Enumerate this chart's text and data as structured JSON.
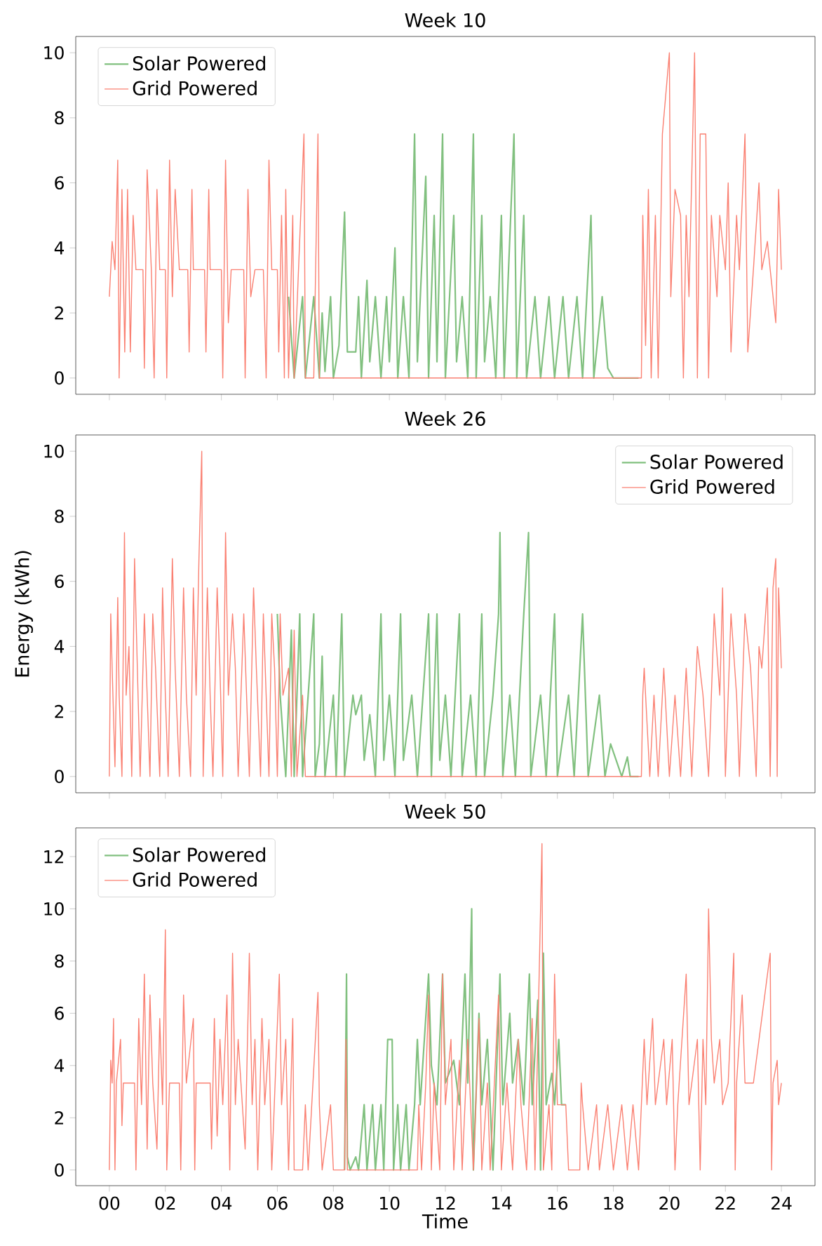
{
  "chart_data": [
    {
      "type": "line",
      "title": "Week 10",
      "xlim": [
        -1.2,
        25.2
      ],
      "ylim": [
        -0.5,
        10.5
      ],
      "yticks": [
        0,
        2,
        4,
        6,
        8,
        10
      ],
      "xticks": [
        {
          "value": 0,
          "label": null
        },
        {
          "value": 2,
          "label": null
        },
        {
          "value": 4,
          "label": null
        },
        {
          "value": 6,
          "label": null
        },
        {
          "value": 8,
          "label": null
        },
        {
          "value": 10,
          "label": null
        },
        {
          "value": 12,
          "label": null
        },
        {
          "value": 14,
          "label": null
        },
        {
          "value": 16,
          "label": null
        },
        {
          "value": 18,
          "label": null
        },
        {
          "value": 20,
          "label": null
        },
        {
          "value": 22,
          "label": null
        },
        {
          "value": 24,
          "label": null
        }
      ],
      "tick_labels": "y",
      "legend": "top left",
      "grid": false,
      "series": [
        {
          "name": "Solar Powered",
          "color": "#81c07f",
          "x": [
            6.4,
            6.6,
            6.9,
            7.0,
            7.3,
            7.5,
            7.6,
            7.7,
            7.9,
            8.0,
            8.2,
            8.4,
            8.5,
            8.8,
            8.9,
            9.0,
            9.2,
            9.3,
            9.5,
            9.7,
            9.9,
            10.0,
            10.2,
            10.3,
            10.5,
            10.7,
            10.9,
            11.0,
            11.3,
            11.4,
            11.6,
            11.7,
            11.9,
            12.0,
            12.3,
            12.4,
            12.6,
            12.8,
            13.0,
            13.1,
            13.3,
            13.4,
            13.6,
            13.8,
            14.0,
            14.1,
            14.45,
            14.55,
            14.8,
            14.9,
            15.2,
            15.4,
            15.7,
            15.9,
            16.2,
            16.4,
            16.7,
            16.9,
            17.2,
            17.3,
            17.6,
            17.8,
            18.0,
            18.9
          ],
          "values": [
            2.5,
            0,
            2.5,
            0,
            2.5,
            0,
            2,
            0.2,
            2.5,
            0,
            1,
            5.1,
            0.8,
            0.8,
            2.5,
            0,
            3,
            0.5,
            2.5,
            0,
            2.5,
            0.5,
            4,
            0,
            2.5,
            0,
            7.5,
            0.5,
            6.2,
            0,
            5,
            0.5,
            7.5,
            0,
            5,
            0.5,
            2.5,
            0,
            7.5,
            0,
            5,
            0.5,
            2.5,
            0,
            5,
            0,
            7.5,
            0,
            5,
            0,
            2.5,
            0,
            2.5,
            0,
            2.5,
            0,
            2.5,
            0,
            5,
            0,
            2.5,
            0.3,
            0,
            0
          ]
        },
        {
          "name": "Grid Powered",
          "color": "#fa8072",
          "x": [
            0,
            0.1,
            0.2,
            0.3,
            0.35,
            0.45,
            0.55,
            0.65,
            0.75,
            0.85,
            0.95,
            1.2,
            1.25,
            1.35,
            1.5,
            1.6,
            1.7,
            1.8,
            2.0,
            2.05,
            2.15,
            2.25,
            2.35,
            2.5,
            2.8,
            2.85,
            2.95,
            3.0,
            3.4,
            3.45,
            3.55,
            3.6,
            4.0,
            4.05,
            4.15,
            4.25,
            4.35,
            4.8,
            4.85,
            4.95,
            5.05,
            5.2,
            5.5,
            5.6,
            5.7,
            5.8,
            6.0,
            6.05,
            6.15,
            6.25,
            6.3,
            6.4,
            6.55,
            6.6,
            6.95,
            7.0,
            7.3,
            7.45,
            7.5,
            19.0,
            19.05,
            19.15,
            19.25,
            19.35,
            19.5,
            19.6,
            19.75,
            20.0,
            20.05,
            20.2,
            20.4,
            20.5,
            20.6,
            20.7,
            20.9,
            21.0,
            21.1,
            21.3,
            21.4,
            21.5,
            21.7,
            21.8,
            22.0,
            22.1,
            22.2,
            22.4,
            22.5,
            22.7,
            22.8,
            23.0,
            23.2,
            23.3,
            23.5,
            23.6,
            23.8,
            23.9,
            24.0
          ],
          "values": [
            2.5,
            4.2,
            3.33,
            6.7,
            0,
            5.8,
            0.8,
            5.8,
            0.8,
            5,
            3.33,
            3.33,
            0.3,
            6.4,
            3.33,
            0,
            5.8,
            3.33,
            3.33,
            0,
            6.7,
            2.5,
            5.8,
            3.33,
            3.33,
            0.8,
            5.8,
            3.33,
            3.33,
            0.8,
            5.8,
            3.33,
            3.33,
            0,
            6.7,
            1.7,
            3.33,
            3.33,
            0,
            5.8,
            2.5,
            3.33,
            3.33,
            0,
            6.7,
            3.33,
            3.33,
            0.8,
            5,
            0,
            5.8,
            0,
            5,
            0,
            7.5,
            0,
            0,
            7.5,
            0,
            0,
            5,
            1,
            5.8,
            0,
            5,
            0,
            7.5,
            10,
            2.5,
            5.8,
            5,
            0,
            5,
            2.5,
            10,
            0,
            7.5,
            7.5,
            0,
            5,
            2.5,
            5,
            3.33,
            6,
            0.8,
            5,
            3.33,
            7.5,
            0.8,
            3.33,
            6,
            3.33,
            4.2,
            3.33,
            1.7,
            5.8,
            3.33
          ]
        }
      ]
    },
    {
      "type": "line",
      "title": "Week 26",
      "ylabel": "Energy (kWh)",
      "xlim": [
        -1.2,
        25.2
      ],
      "ylim": [
        -0.5,
        10.5
      ],
      "yticks": [
        0,
        2,
        4,
        6,
        8,
        10
      ],
      "xticks": [
        {
          "value": 0,
          "label": null
        },
        {
          "value": 2,
          "label": null
        },
        {
          "value": 4,
          "label": null
        },
        {
          "value": 6,
          "label": null
        },
        {
          "value": 8,
          "label": null
        },
        {
          "value": 10,
          "label": null
        },
        {
          "value": 12,
          "label": null
        },
        {
          "value": 14,
          "label": null
        },
        {
          "value": 16,
          "label": null
        },
        {
          "value": 18,
          "label": null
        },
        {
          "value": 20,
          "label": null
        },
        {
          "value": 22,
          "label": null
        },
        {
          "value": 24,
          "label": null
        }
      ],
      "tick_labels": "y",
      "legend": "top right",
      "grid": false,
      "series": [
        {
          "name": "Solar Powered",
          "color": "#81c07f",
          "x": [
            6.0,
            6.1,
            6.3,
            6.5,
            6.6,
            6.8,
            6.9,
            7.3,
            7.35,
            7.5,
            7.6,
            7.7,
            8.0,
            8.1,
            8.3,
            8.4,
            8.7,
            8.8,
            9.0,
            9.1,
            9.3,
            9.5,
            9.7,
            9.8,
            10.0,
            10.2,
            10.4,
            10.5,
            10.8,
            11.0,
            11.4,
            11.5,
            11.7,
            11.8,
            12.0,
            12.2,
            12.5,
            12.6,
            12.9,
            13.1,
            13.3,
            13.4,
            13.7,
            13.9,
            13.95,
            14.05,
            14.3,
            14.5,
            14.8,
            14.97,
            15.05,
            15.4,
            15.6,
            15.9,
            16.0,
            16.4,
            16.6,
            16.9,
            17.1,
            17.5,
            17.7,
            17.9,
            18.1,
            18.3,
            18.5,
            18.6,
            18.9
          ],
          "values": [
            5,
            2.5,
            0,
            4.5,
            0,
            5,
            0,
            5,
            0,
            1,
            3.7,
            0,
            2.5,
            0,
            5,
            0,
            2.5,
            1.9,
            2.5,
            0.5,
            1.9,
            0,
            5,
            0.5,
            2.5,
            0,
            5,
            0.5,
            2.5,
            0,
            5,
            0,
            5,
            0.5,
            2.5,
            0,
            5,
            0,
            2.5,
            0,
            5,
            0,
            2.5,
            5,
            7.5,
            0,
            2.5,
            0,
            5,
            7.5,
            0,
            2.5,
            0,
            5,
            0,
            2.5,
            0,
            5,
            0,
            2.5,
            0,
            1,
            0.5,
            0,
            0.6,
            0,
            0
          ]
        },
        {
          "name": "Grid Powered",
          "color": "#fa8072",
          "x": [
            0,
            0.05,
            0.1,
            0.2,
            0.3,
            0.35,
            0.45,
            0.54,
            0.6,
            0.7,
            0.8,
            0.9,
            1.0,
            1.1,
            1.25,
            1.35,
            1.45,
            1.55,
            1.65,
            1.8,
            1.9,
            2.0,
            2.1,
            2.25,
            2.35,
            2.5,
            2.65,
            2.75,
            2.9,
            3.0,
            3.1,
            3.2,
            3.3,
            3.35,
            3.5,
            3.6,
            3.7,
            3.85,
            3.95,
            4.05,
            4.15,
            4.25,
            4.4,
            4.5,
            4.6,
            4.8,
            4.9,
            5.0,
            5.15,
            5.25,
            5.4,
            5.5,
            5.6,
            5.7,
            5.8,
            5.9,
            6.0,
            6.1,
            6.2,
            6.4,
            6.5,
            6.6,
            6.7,
            6.9,
            7.0,
            19.0,
            19.05,
            19.1,
            19.3,
            19.45,
            19.6,
            19.8,
            20.0,
            20.2,
            20.4,
            20.6,
            20.8,
            21.0,
            21.2,
            21.4,
            21.6,
            21.8,
            21.9,
            22.0,
            22.2,
            22.4,
            22.5,
            22.7,
            22.9,
            23.1,
            23.2,
            23.3,
            23.5,
            23.6,
            23.7,
            23.8,
            23.85,
            23.9,
            24.0
          ],
          "values": [
            0,
            5,
            3.33,
            0.3,
            5.5,
            2.5,
            0,
            7.5,
            2.5,
            4,
            0,
            6.7,
            3.33,
            0,
            5,
            2.5,
            0,
            5,
            3.33,
            0,
            5.8,
            2.5,
            0,
            6.7,
            3.33,
            0,
            5.8,
            2.5,
            0,
            5.8,
            2.5,
            6.7,
            10,
            0,
            5.8,
            2.5,
            0,
            5.8,
            3.33,
            0,
            7.5,
            2.5,
            5,
            3.33,
            0,
            5,
            2.5,
            0,
            5.8,
            3.33,
            0,
            5,
            2.5,
            0,
            5,
            3.33,
            0,
            5,
            2.5,
            3.33,
            0,
            4.5,
            0,
            2.5,
            0,
            0,
            2.5,
            3.33,
            0,
            2.5,
            0,
            3.33,
            0,
            2.5,
            0,
            3.33,
            0,
            4,
            2.5,
            0,
            5,
            2.5,
            5.8,
            0,
            5,
            2.5,
            0,
            5,
            3.33,
            0,
            4,
            3.33,
            5.8,
            0,
            5.8,
            6.7,
            0,
            5.8,
            3.33
          ]
        }
      ]
    },
    {
      "type": "line",
      "title": "Week 50",
      "xlabel": "Time",
      "xlim": [
        -1.2,
        25.2
      ],
      "ylim": [
        -0.6,
        13.1
      ],
      "yticks": [
        0,
        2,
        4,
        6,
        8,
        10,
        12
      ],
      "xticks": [
        {
          "value": 0,
          "label": "00"
        },
        {
          "value": 2,
          "label": "02"
        },
        {
          "value": 4,
          "label": "04"
        },
        {
          "value": 6,
          "label": "06"
        },
        {
          "value": 8,
          "label": "08"
        },
        {
          "value": 10,
          "label": "10"
        },
        {
          "value": 12,
          "label": "12"
        },
        {
          "value": 14,
          "label": "14"
        },
        {
          "value": 16,
          "label": "16"
        },
        {
          "value": 18,
          "label": "18"
        },
        {
          "value": 20,
          "label": "20"
        },
        {
          "value": 22,
          "label": "22"
        },
        {
          "value": 24,
          "label": "24"
        }
      ],
      "legend": "top left",
      "grid": false,
      "series": [
        {
          "name": "Solar Powered",
          "color": "#81c07f",
          "x": [
            8.4,
            8.47,
            8.5,
            8.6,
            8.8,
            8.9,
            9.1,
            9.2,
            9.4,
            9.5,
            9.7,
            9.8,
            9.94,
            10.1,
            10.15,
            10.3,
            10.4,
            10.6,
            10.7,
            10.9,
            11.0,
            11.1,
            11.4,
            11.5,
            11.7,
            11.9,
            12.0,
            12.3,
            12.5,
            12.7,
            12.8,
            12.94,
            13.0,
            13.2,
            13.3,
            13.5,
            13.7,
            13.95,
            14.05,
            14.3,
            14.4,
            14.6,
            14.8,
            15.0,
            15.1,
            15.3,
            15.4,
            15.5,
            15.6,
            15.8,
            15.9,
            16.05,
            16.15,
            16.3
          ],
          "values": [
            0,
            7.5,
            0.5,
            0,
            0.5,
            0,
            2.5,
            0,
            2.5,
            0,
            2.5,
            0,
            5,
            5,
            0,
            2.5,
            0,
            2.5,
            0,
            2.5,
            5,
            2.5,
            7.5,
            4,
            2.5,
            7.5,
            3.33,
            4.2,
            2.5,
            7.5,
            3.33,
            10,
            0,
            6,
            2.5,
            5,
            0,
            7.5,
            2.5,
            6,
            3.33,
            5,
            2.5,
            7.5,
            2.5,
            6.5,
            0,
            8.3,
            2.5,
            3.7,
            2.5,
            5,
            2.5,
            2.5
          ]
        },
        {
          "name": "Grid Powered",
          "color": "#fa8072",
          "x": [
            0,
            0.05,
            0.1,
            0.15,
            0.2,
            0.25,
            0.4,
            0.45,
            0.5,
            0.9,
            0.95,
            1.05,
            1.15,
            1.25,
            1.35,
            1.45,
            1.55,
            1.7,
            1.8,
            1.9,
            2.0,
            2.05,
            2.15,
            2.5,
            2.55,
            2.65,
            2.75,
            3.0,
            3.05,
            3.1,
            3.6,
            3.65,
            3.75,
            3.85,
            3.95,
            4.05,
            4.2,
            4.3,
            4.4,
            4.5,
            4.6,
            4.7,
            4.85,
            5.0,
            5.1,
            5.2,
            5.3,
            5.45,
            5.55,
            5.7,
            5.8,
            6.07,
            6.15,
            6.3,
            6.4,
            6.55,
            6.6,
            6.9,
            7.0,
            7.1,
            7.45,
            7.5,
            7.6,
            7.9,
            8.0,
            8.4,
            8.45,
            8.5,
            11.0,
            11.05,
            11.15,
            11.3,
            11.4,
            11.5,
            11.6,
            11.8,
            11.9,
            12.0,
            12.2,
            12.3,
            12.5,
            12.6,
            12.8,
            12.9,
            13.0,
            13.2,
            13.3,
            13.5,
            13.6,
            13.9,
            14.0,
            14.2,
            14.4,
            14.6,
            14.7,
            14.9,
            15.1,
            15.2,
            15.45,
            15.5,
            15.7,
            15.8,
            15.9,
            16.0,
            16.3,
            16.4,
            16.8,
            16.85,
            16.9,
            17.1,
            17.4,
            17.5,
            17.8,
            18.0,
            18.3,
            18.5,
            18.7,
            18.9,
            19.0,
            19.1,
            19.2,
            19.4,
            19.5,
            19.8,
            19.9,
            20.1,
            20.2,
            20.3,
            20.6,
            20.7,
            21.0,
            21.1,
            21.2,
            21.3,
            21.4,
            21.5,
            21.6,
            21.8,
            21.9,
            22.1,
            22.3,
            22.35,
            22.4,
            22.6,
            22.7,
            23.0,
            23.6,
            23.65,
            23.7,
            23.85,
            23.9,
            24.0
          ],
          "values": [
            0,
            4.2,
            3.33,
            5.8,
            0,
            3.33,
            5,
            1.7,
            3.33,
            3.33,
            0,
            5.8,
            2.5,
            7.5,
            0.8,
            6.7,
            3.33,
            0.8,
            5.8,
            2.5,
            9.2,
            0,
            3.33,
            3.33,
            0,
            6.7,
            3.33,
            5.8,
            0,
            3.33,
            3.33,
            0.8,
            5.8,
            1.3,
            5,
            2.5,
            6.7,
            0,
            8.3,
            2.5,
            5,
            3.33,
            0.8,
            8.3,
            2.5,
            5,
            0,
            5.8,
            2.5,
            5,
            0,
            7.5,
            2.5,
            5,
            0,
            5.8,
            0,
            0,
            2.5,
            0,
            6.8,
            2.5,
            0,
            2.5,
            0,
            0,
            5,
            0,
            0,
            2.5,
            0,
            3.33,
            6.7,
            0,
            3.33,
            0,
            7.5,
            2.5,
            5,
            0,
            4.2,
            0,
            5,
            2.5,
            0,
            5.8,
            0,
            3.33,
            0,
            6.7,
            0,
            3.33,
            0,
            5,
            2.5,
            0,
            5.8,
            0,
            12.5,
            0,
            2.5,
            0,
            7.5,
            2.5,
            2.5,
            0,
            0,
            3.33,
            2.5,
            0,
            2.5,
            0,
            2.5,
            0,
            2.5,
            0,
            2.5,
            0,
            2.5,
            5,
            2.5,
            5.8,
            2.5,
            5,
            2.5,
            5,
            0,
            2.5,
            7.5,
            2.5,
            5,
            0,
            5,
            2.5,
            10,
            5,
            3.33,
            5,
            2.5,
            3.33,
            8.3,
            0,
            3.33,
            6.7,
            3.33,
            3.33,
            8.3,
            0,
            3.33,
            4.2,
            2.5,
            3.33
          ]
        }
      ]
    }
  ]
}
